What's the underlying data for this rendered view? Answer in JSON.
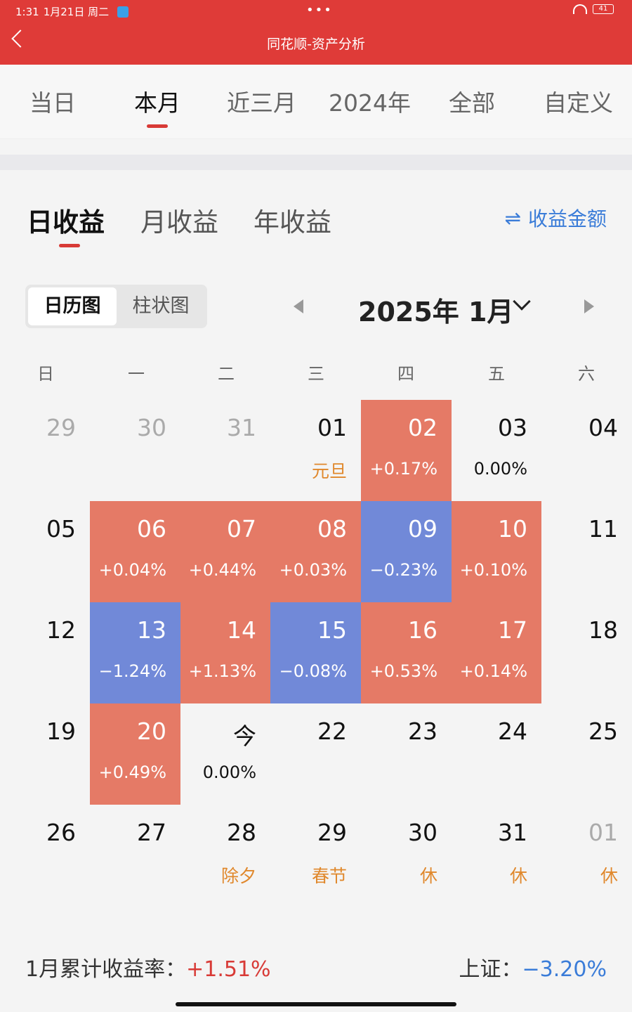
{
  "status_bar": {
    "time": "1:31",
    "date": "1月21日 周二",
    "battery": "41"
  },
  "header": {
    "title": "同花顺-资产分析"
  },
  "period_tabs": [
    "当日",
    "本月",
    "近三月",
    "2024年",
    "全部",
    "自定义"
  ],
  "sub_tabs": [
    "日收益",
    "月收益",
    "年收益"
  ],
  "switch_label": "收益金额",
  "view_toggle": [
    "日历图",
    "柱状图"
  ],
  "month_label": "2025年 1月",
  "weekdays": [
    "日",
    "一",
    "二",
    "三",
    "四",
    "五",
    "六"
  ],
  "colors": {
    "up": "#e57a66",
    "down": "#7189d8",
    "holiday": "#e0882c",
    "accent_red": "#d83a36",
    "accent_blue": "#3a7cd8"
  },
  "calendar_rows": [
    [
      {
        "day": "29",
        "muted": true
      },
      {
        "day": "30",
        "muted": true
      },
      {
        "day": "31",
        "muted": true
      },
      {
        "day": "01",
        "label": "元旦"
      },
      {
        "day": "02",
        "value": "+0.17%",
        "state": "up"
      },
      {
        "day": "03",
        "value": "0.00%"
      },
      {
        "day": "04"
      }
    ],
    [
      {
        "day": "05"
      },
      {
        "day": "06",
        "value": "+0.04%",
        "state": "up"
      },
      {
        "day": "07",
        "value": "+0.44%",
        "state": "up"
      },
      {
        "day": "08",
        "value": "+0.03%",
        "state": "up"
      },
      {
        "day": "09",
        "value": "−0.23%",
        "state": "down"
      },
      {
        "day": "10",
        "value": "+0.10%",
        "state": "up"
      },
      {
        "day": "11"
      }
    ],
    [
      {
        "day": "12"
      },
      {
        "day": "13",
        "value": "−1.24%",
        "state": "down"
      },
      {
        "day": "14",
        "value": "+1.13%",
        "state": "up"
      },
      {
        "day": "15",
        "value": "−0.08%",
        "state": "down"
      },
      {
        "day": "16",
        "value": "+0.53%",
        "state": "up"
      },
      {
        "day": "17",
        "value": "+0.14%",
        "state": "up"
      },
      {
        "day": "18"
      }
    ],
    [
      {
        "day": "19"
      },
      {
        "day": "20",
        "value": "+0.49%",
        "state": "up"
      },
      {
        "day": "今",
        "value": "0.00%"
      },
      {
        "day": "22"
      },
      {
        "day": "23"
      },
      {
        "day": "24"
      },
      {
        "day": "25"
      }
    ],
    [
      {
        "day": "26"
      },
      {
        "day": "27"
      },
      {
        "day": "28",
        "label": "除夕"
      },
      {
        "day": "29",
        "label": "春节"
      },
      {
        "day": "30",
        "label": "休"
      },
      {
        "day": "31",
        "label": "休"
      },
      {
        "day": "01",
        "label": "休",
        "muted": true
      }
    ]
  ],
  "footer": {
    "cumulative_label": "1月累计收益率：",
    "cumulative_value": "+1.51%",
    "index_label": "上证：",
    "index_value": "−3.20%"
  }
}
